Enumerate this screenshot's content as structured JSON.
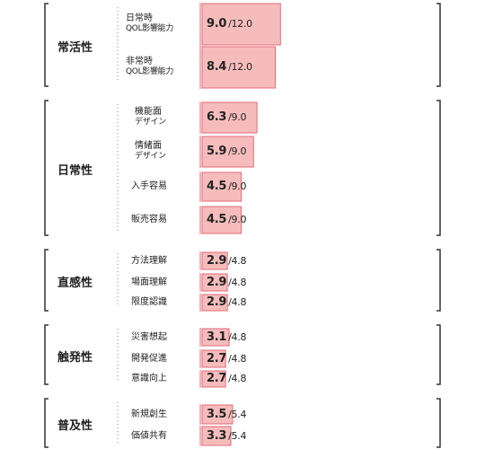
{
  "chart_data": {
    "type": "bar",
    "colors": {
      "base": "#f6bcbc",
      "excess": "#e5485e",
      "border": "#e36a78",
      "bracket": "#333333"
    },
    "groups": [
      {
        "name": "常活性",
        "items": [
          {
            "label": "日常時",
            "sub": "QOL影響能力",
            "value": 9.0,
            "value_text": "9.0",
            "max_text": "/12.0"
          },
          {
            "label": "非常時",
            "sub": "QOL影響能力",
            "value": 8.4,
            "value_text": "8.4",
            "max_text": "/12.0"
          }
        ]
      },
      {
        "name": "日常性",
        "items": [
          {
            "label": "機能面",
            "sub": "デザイン",
            "value": 6.3,
            "value_text": "6.3",
            "max_text": "/9.0"
          },
          {
            "label": "情緒面",
            "sub": "デザイン",
            "value": 5.9,
            "value_text": "5.9",
            "max_text": "/9.0"
          },
          {
            "label": "入手容易",
            "sub": "",
            "value": 4.5,
            "value_text": "4.5",
            "max_text": "/9.0"
          },
          {
            "label": "販売容易",
            "sub": "",
            "value": 4.5,
            "value_text": "4.5",
            "max_text": "/9.0"
          }
        ]
      },
      {
        "name": "直感性",
        "items": [
          {
            "label": "方法理解",
            "sub": "",
            "value": 2.9,
            "value_text": "2.9",
            "max_text": "/4.8"
          },
          {
            "label": "場面理解",
            "sub": "",
            "value": 2.9,
            "value_text": "2.9",
            "max_text": "/4.8"
          },
          {
            "label": "限度認識",
            "sub": "",
            "value": 2.9,
            "value_text": "2.9",
            "max_text": "/4.8"
          }
        ]
      },
      {
        "name": "触発性",
        "items": [
          {
            "label": "災害想起",
            "sub": "",
            "value": 3.1,
            "value_text": "3.1",
            "max_text": "/4.8"
          },
          {
            "label": "開発促進",
            "sub": "",
            "value": 2.7,
            "value_text": "2.7",
            "max_text": "/4.8"
          },
          {
            "label": "意識向上",
            "sub": "",
            "value": 2.7,
            "value_text": "2.7",
            "max_text": "/4.8"
          }
        ]
      },
      {
        "name": "普及性",
        "items": [
          {
            "label": "新規創生",
            "sub": "",
            "value": 3.5,
            "value_text": "3.5",
            "max_text": "/5.4"
          },
          {
            "label": "価値共有",
            "sub": "",
            "value": 3.3,
            "value_text": "3.3",
            "max_text": "/5.4"
          }
        ]
      }
    ]
  }
}
